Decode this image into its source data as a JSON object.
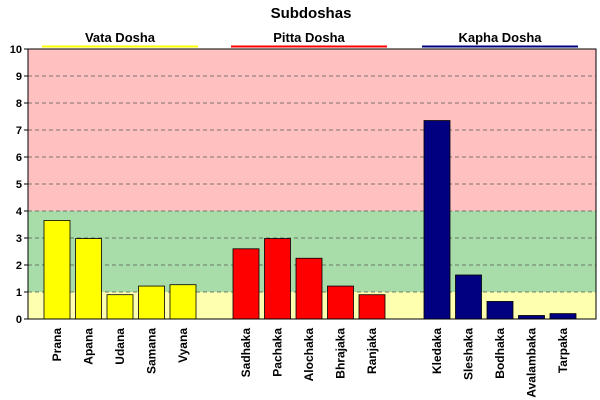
{
  "chart_data": {
    "type": "bar",
    "title": "Subdoshas",
    "xlabel": "",
    "ylabel": "",
    "ylim": [
      0,
      10
    ],
    "yticks": [
      "0",
      "1",
      "2",
      "3",
      "4",
      "5",
      "6",
      "7",
      "8",
      "9",
      "10"
    ],
    "grid": "horizontal dashed",
    "background_bands": [
      {
        "from": 0,
        "to": 1,
        "color": "#ffffb0"
      },
      {
        "from": 1,
        "to": 4,
        "color": "#a8dca8"
      },
      {
        "from": 4,
        "to": 10,
        "color": "#ffc0c0"
      }
    ],
    "groups": [
      {
        "name": "Vata Dosha",
        "color": "#ffff00",
        "categories": [
          "Prana",
          "Apana",
          "Udana",
          "Samana",
          "Vyana"
        ],
        "values": [
          3.65,
          2.98,
          0.9,
          1.22,
          1.27
        ]
      },
      {
        "name": "Pitta Dosha",
        "color": "#ff0000",
        "categories": [
          "Sadhaka",
          "Pachaka",
          "Alochaka",
          "Bhrajaka",
          "Ranjaka"
        ],
        "values": [
          2.6,
          2.98,
          2.25,
          1.22,
          0.9
        ]
      },
      {
        "name": "Kapha Dosha",
        "color": "#000080",
        "categories": [
          "Kledaka",
          "Sleshaka",
          "Bodhaka",
          "Avalambaka",
          "Tarpaka"
        ],
        "values": [
          7.35,
          1.63,
          0.65,
          0.13,
          0.2
        ]
      }
    ]
  }
}
